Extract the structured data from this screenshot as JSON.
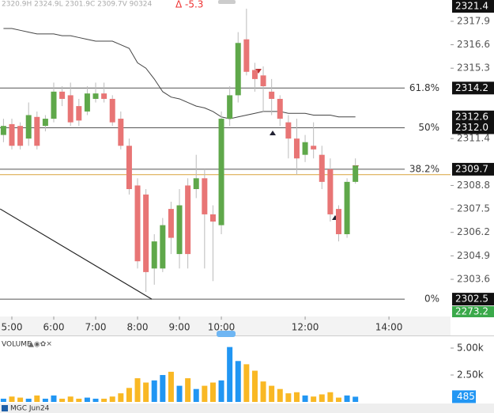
{
  "chart_data": {
    "type": "candlestick",
    "header": "2320.9H 2324.9L 2301.9C 2309.7V 90324",
    "change": "Δ -5.3",
    "volume_title": "VOLUME",
    "symbol": "MGC Jun24",
    "top_label": "2321.4",
    "bottom_label": "2273.2",
    "x": [
      4.8,
      5.0,
      5.2,
      5.4,
      5.6,
      5.8,
      6.0,
      6.2,
      6.4,
      6.6,
      6.8,
      7.0,
      7.2,
      7.4,
      7.6,
      7.8,
      8.0,
      8.2,
      8.4,
      8.6,
      8.8,
      9.0,
      9.2,
      9.4,
      9.6,
      9.8,
      10.0,
      10.2,
      10.4,
      10.6,
      10.8,
      11.0,
      11.2,
      11.4,
      11.6,
      11.8,
      12.0,
      12.2,
      12.4,
      12.6,
      12.8,
      13.0,
      13.2
    ],
    "open": [
      2311.6,
      2312.2,
      2312.1,
      2311.4,
      2312.6,
      2312.1,
      2312.5,
      2314.0,
      2313.8,
      2313.2,
      2312.9,
      2313.6,
      2313.9,
      2313.6,
      2312.5,
      2311.0,
      2308.8,
      2308.3,
      2304.2,
      2304.2,
      2307.5,
      2305.0,
      2308.8,
      2308.6,
      2309.2,
      2307.2,
      2306.6,
      2312.5,
      2313.8,
      2316.9,
      2315.2,
      2314.9,
      2314.0,
      2313.6,
      2312.3,
      2311.4,
      2310.5,
      2311.0,
      2310.5,
      2309.7,
      2307.5,
      2306.1,
      2309.0
    ],
    "high": [
      2312.5,
      2312.5,
      2312.3,
      2313.4,
      2312.9,
      2312.7,
      2314.5,
      2314.3,
      2314.5,
      2313.6,
      2314.3,
      2314.5,
      2314.5,
      2313.8,
      2312.9,
      2311.4,
      2309.2,
      2308.6,
      2306.1,
      2307.0,
      2307.9,
      2308.6,
      2309.2,
      2310.5,
      2309.7,
      2307.7,
      2312.9,
      2314.3,
      2317.3,
      2318.6,
      2315.6,
      2315.4,
      2314.7,
      2313.8,
      2312.7,
      2312.5,
      2311.6,
      2312.3,
      2311.0,
      2310.3,
      2307.7,
      2309.2,
      2310.3
    ],
    "low": [
      2311.2,
      2310.8,
      2310.8,
      2311.0,
      2310.8,
      2311.8,
      2312.3,
      2313.2,
      2312.1,
      2312.1,
      2312.7,
      2313.4,
      2313.4,
      2312.1,
      2310.8,
      2308.3,
      2304.2,
      2302.9,
      2303.3,
      2304.0,
      2305.0,
      2304.2,
      2304.2,
      2308.1,
      2304.2,
      2303.5,
      2306.1,
      2312.1,
      2313.4,
      2314.9,
      2314.0,
      2312.9,
      2312.7,
      2312.1,
      2310.3,
      2309.4,
      2310.1,
      2310.3,
      2308.6,
      2306.8,
      2305.7,
      2305.9,
      2308.9
    ],
    "close": [
      2312.1,
      2311.0,
      2311.0,
      2312.7,
      2311.0,
      2312.5,
      2314.0,
      2313.6,
      2312.3,
      2312.4,
      2313.9,
      2313.9,
      2313.6,
      2312.3,
      2311.0,
      2308.6,
      2304.6,
      2304.0,
      2305.7,
      2306.6,
      2305.9,
      2307.7,
      2305.0,
      2309.2,
      2307.2,
      2306.8,
      2312.5,
      2313.8,
      2316.7,
      2315.1,
      2314.7,
      2314.3,
      2313.6,
      2312.5,
      2311.4,
      2310.3,
      2311.2,
      2310.8,
      2309.0,
      2307.2,
      2306.1,
      2309.0,
      2309.9
    ],
    "volume": [
      300,
      500,
      400,
      300,
      600,
      300,
      600,
      300,
      500,
      300,
      400,
      300,
      300,
      500,
      800,
      1300,
      2200,
      1800,
      2000,
      2500,
      2800,
      1500,
      2200,
      1200,
      1500,
      1800,
      2000,
      5100,
      3800,
      3500,
      2900,
      1900,
      1500,
      1200,
      800,
      900,
      600,
      500,
      700,
      900,
      400,
      600,
      485
    ],
    "ma": [
      2317.5,
      2317.5,
      2317.4,
      2317.3,
      2317.2,
      2317.2,
      2317.2,
      2317.1,
      2317.1,
      2317.0,
      2316.9,
      2316.8,
      2316.8,
      2316.8,
      2316.6,
      2316.4,
      2315.6,
      2315.3,
      2314.7,
      2314.0,
      2313.7,
      2313.6,
      2313.4,
      2313.2,
      2313.1,
      2312.9,
      2312.6,
      2312.5,
      2312.6,
      2312.7,
      2312.8,
      2312.9,
      2312.9,
      2312.9,
      2312.8,
      2312.8,
      2312.8,
      2312.7,
      2312.7,
      2312.7,
      2312.6,
      2312.6,
      2312.6
    ],
    "ma_label": "2312.6",
    "ma_color": "#444444",
    "up_color": "#5fa84a",
    "down_color": "#e87575",
    "volume_up_color": "#2196f3",
    "volume_down_color": "#f9b824",
    "levels": [
      {
        "name": "61.8%",
        "value": 2314.2,
        "label": "2314.2"
      },
      {
        "name": "50%",
        "value": 2312.0,
        "label": "2312.0"
      },
      {
        "name": "38.2%",
        "value": 2309.7,
        "label": "2309.7"
      },
      {
        "name": "0%",
        "value": 2302.5,
        "label": "2302.5"
      }
    ],
    "orange_line": 2309.4,
    "trend_line": {
      "x": [
        4.72,
        8.34
      ],
      "y": [
        2307.5,
        2302.5
      ]
    },
    "xlim": [
      4.717,
      15.47
    ],
    "ylim": [
      2301.54,
      2319.08
    ],
    "xticks": [
      {
        "value": 5,
        "label": "5:00"
      },
      {
        "value": 6,
        "label": "6:00"
      },
      {
        "value": 7,
        "label": "7:00"
      },
      {
        "value": 8,
        "label": "8:00"
      },
      {
        "value": 9,
        "label": "9:00"
      },
      {
        "value": 10,
        "label": "10:00"
      },
      {
        "value": 12,
        "label": "12:00"
      },
      {
        "value": 14,
        "label": "14:00"
      }
    ],
    "yticks": [
      2303.6,
      2304.9,
      2306.2,
      2307.5,
      2308.8,
      2311.4,
      2315.3,
      2316.6,
      2317.9
    ],
    "volume_ylim": [
      0,
      6100
    ],
    "volume_ticks": [
      {
        "value": 5000,
        "label": "5.00k"
      },
      {
        "value": 2500,
        "label": "2.50k"
      }
    ]
  }
}
